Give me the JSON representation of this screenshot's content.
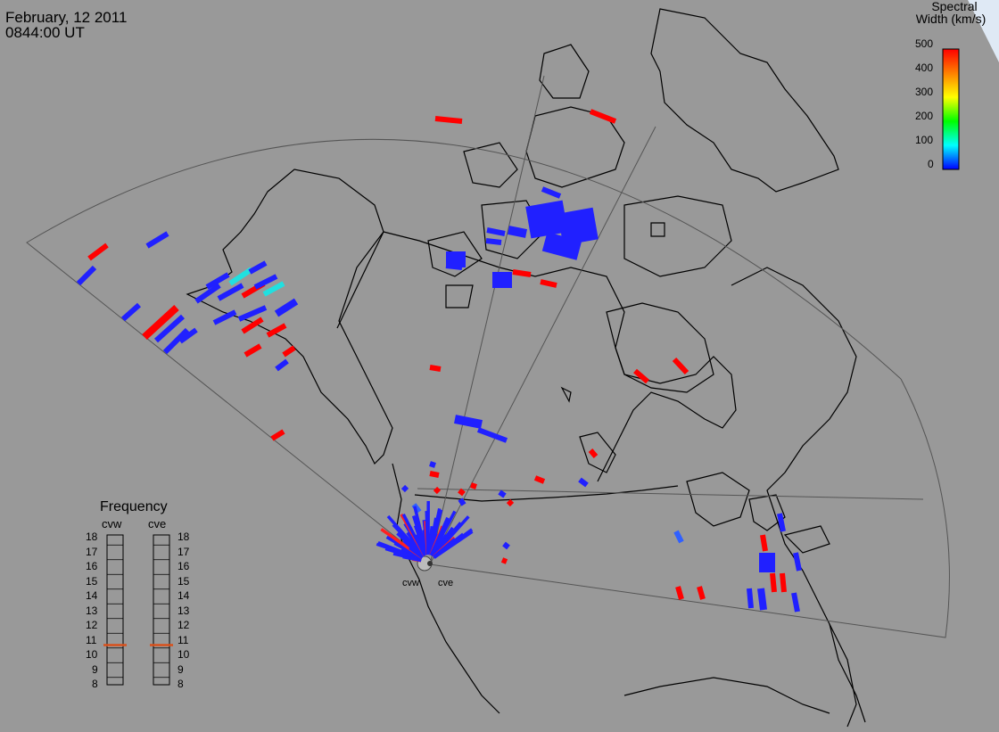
{
  "header": {
    "date": "February, 12 2011",
    "time": "0844:00 UT"
  },
  "colors": {
    "background": "#999999",
    "coast": "#000000",
    "fov": "#555555",
    "freq_marker": "#d9501a"
  },
  "color_scale": {
    "title_line1": "Spectral",
    "title_line2": "Width (km/s)",
    "ticks": [
      "500",
      "400",
      "300",
      "200",
      "100",
      "0"
    ],
    "gradient": [
      "#ff0000",
      "#ffa000",
      "#ffff00",
      "#00ff00",
      "#00ffff",
      "#0000ff"
    ]
  },
  "frequency_panel": {
    "title": "Frequency",
    "radars": [
      {
        "name": "cvw",
        "value_mhz": 10.7
      },
      {
        "name": "cve",
        "value_mhz": 10.7
      }
    ],
    "scale": [
      "18",
      "17",
      "16",
      "15",
      "14",
      "13",
      "12",
      "11",
      "10",
      "9",
      "8"
    ]
  },
  "sites": [
    {
      "label": "cvw"
    },
    {
      "label": "cve"
    }
  ],
  "map": {
    "icons": [
      "coastline-icon",
      "radar-fov-icon",
      "radar-site-icon"
    ]
  }
}
